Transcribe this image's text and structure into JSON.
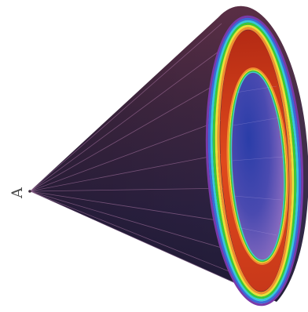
{
  "figure": {
    "vertex_label": "A"
  },
  "colors": {
    "background": "#ffffff",
    "cone_surface_dark": "#241d3a",
    "cone_surface_mid": "#3a2848",
    "cone_surface_light": "#6a3450",
    "inner_disk_blue": "#2c3a9a",
    "inner_disk_violet": "#8a70c0",
    "inner_disk_light": "#b8a8dc",
    "collar_red": "#d23a1a",
    "collar_orange": "#e8541e",
    "ring_purple": "#7a3aa8",
    "ring_blue": "#3a6ad8",
    "ring_cyan": "#3ac8d8",
    "ring_green": "#3ac83a",
    "ring_yellow": "#e8e03a",
    "ring_orange": "#f09030",
    "ruling_line": "#b080b0"
  }
}
